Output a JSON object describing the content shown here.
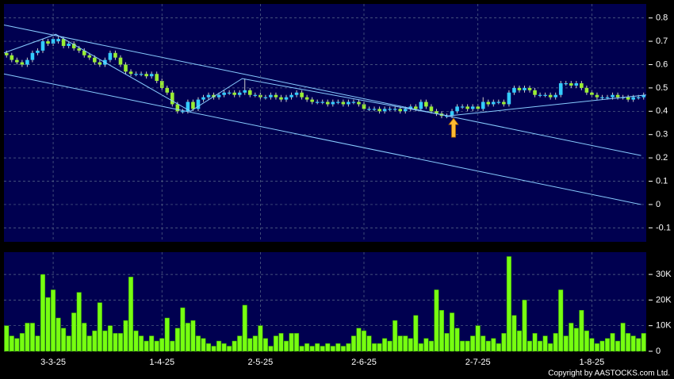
{
  "chart_data": [
    {
      "type": "candlestick",
      "ylim": [
        -0.16,
        0.86
      ],
      "yticks": [
        -0.1,
        0,
        0.1,
        0.2,
        0.3,
        0.4,
        0.5,
        0.6,
        0.7,
        0.8
      ],
      "grid": true,
      "up_color": "#33ccff",
      "down_color": "#99ee33",
      "candles": [
        [
          0.65,
          0.66,
          0.63,
          0.64
        ],
        [
          0.64,
          0.65,
          0.61,
          0.62
        ],
        [
          0.62,
          0.63,
          0.6,
          0.61
        ],
        [
          0.61,
          0.62,
          0.59,
          0.6
        ],
        [
          0.6,
          0.63,
          0.59,
          0.62
        ],
        [
          0.62,
          0.66,
          0.61,
          0.65
        ],
        [
          0.65,
          0.67,
          0.64,
          0.66
        ],
        [
          0.66,
          0.71,
          0.65,
          0.7
        ],
        [
          0.7,
          0.71,
          0.68,
          0.69
        ],
        [
          0.69,
          0.72,
          0.68,
          0.71
        ],
        [
          0.7,
          0.72,
          0.69,
          0.71
        ],
        [
          0.71,
          0.72,
          0.67,
          0.68
        ],
        [
          0.68,
          0.7,
          0.67,
          0.69
        ],
        [
          0.69,
          0.7,
          0.66,
          0.67
        ],
        [
          0.67,
          0.68,
          0.65,
          0.66
        ],
        [
          0.66,
          0.67,
          0.63,
          0.64
        ],
        [
          0.64,
          0.65,
          0.62,
          0.63
        ],
        [
          0.63,
          0.64,
          0.6,
          0.61
        ],
        [
          0.61,
          0.62,
          0.59,
          0.6
        ],
        [
          0.6,
          0.63,
          0.59,
          0.62
        ],
        [
          0.62,
          0.66,
          0.61,
          0.65
        ],
        [
          0.65,
          0.66,
          0.62,
          0.63
        ],
        [
          0.63,
          0.64,
          0.59,
          0.6
        ],
        [
          0.6,
          0.61,
          0.56,
          0.57
        ],
        [
          0.57,
          0.58,
          0.55,
          0.56
        ],
        [
          0.56,
          0.57,
          0.55,
          0.56
        ],
        [
          0.56,
          0.57,
          0.55,
          0.56
        ],
        [
          0.56,
          0.57,
          0.54,
          0.55
        ],
        [
          0.55,
          0.57,
          0.54,
          0.56
        ],
        [
          0.56,
          0.57,
          0.52,
          0.53
        ],
        [
          0.53,
          0.54,
          0.49,
          0.5
        ],
        [
          0.5,
          0.51,
          0.47,
          0.48
        ],
        [
          0.48,
          0.49,
          0.42,
          0.43
        ],
        [
          0.43,
          0.44,
          0.39,
          0.4
        ],
        [
          0.4,
          0.41,
          0.39,
          0.4
        ],
        [
          0.4,
          0.45,
          0.39,
          0.44
        ],
        [
          0.44,
          0.45,
          0.4,
          0.41
        ],
        [
          0.41,
          0.46,
          0.4,
          0.45
        ],
        [
          0.45,
          0.47,
          0.44,
          0.46
        ],
        [
          0.46,
          0.48,
          0.45,
          0.47
        ],
        [
          0.47,
          0.48,
          0.45,
          0.46
        ],
        [
          0.46,
          0.48,
          0.45,
          0.47
        ],
        [
          0.47,
          0.49,
          0.46,
          0.48
        ],
        [
          0.48,
          0.49,
          0.47,
          0.48
        ],
        [
          0.48,
          0.49,
          0.46,
          0.47
        ],
        [
          0.47,
          0.49,
          0.46,
          0.48
        ],
        [
          0.48,
          0.54,
          0.47,
          0.49
        ],
        [
          0.49,
          0.5,
          0.46,
          0.47
        ],
        [
          0.47,
          0.48,
          0.46,
          0.47
        ],
        [
          0.47,
          0.48,
          0.45,
          0.46
        ],
        [
          0.46,
          0.47,
          0.45,
          0.46
        ],
        [
          0.46,
          0.48,
          0.45,
          0.47
        ],
        [
          0.47,
          0.48,
          0.45,
          0.46
        ],
        [
          0.46,
          0.47,
          0.44,
          0.45
        ],
        [
          0.45,
          0.47,
          0.44,
          0.46
        ],
        [
          0.46,
          0.48,
          0.45,
          0.47
        ],
        [
          0.47,
          0.49,
          0.46,
          0.48
        ],
        [
          0.48,
          0.49,
          0.45,
          0.46
        ],
        [
          0.46,
          0.47,
          0.44,
          0.45
        ],
        [
          0.45,
          0.46,
          0.43,
          0.44
        ],
        [
          0.44,
          0.45,
          0.43,
          0.44
        ],
        [
          0.44,
          0.45,
          0.43,
          0.44
        ],
        [
          0.44,
          0.45,
          0.42,
          0.43
        ],
        [
          0.43,
          0.45,
          0.42,
          0.44
        ],
        [
          0.44,
          0.45,
          0.43,
          0.44
        ],
        [
          0.44,
          0.45,
          0.42,
          0.43
        ],
        [
          0.43,
          0.45,
          0.42,
          0.44
        ],
        [
          0.44,
          0.45,
          0.43,
          0.44
        ],
        [
          0.44,
          0.45,
          0.42,
          0.43
        ],
        [
          0.43,
          0.44,
          0.4,
          0.41
        ],
        [
          0.41,
          0.42,
          0.4,
          0.41
        ],
        [
          0.41,
          0.42,
          0.4,
          0.41
        ],
        [
          0.41,
          0.42,
          0.39,
          0.4
        ],
        [
          0.4,
          0.42,
          0.39,
          0.41
        ],
        [
          0.41,
          0.42,
          0.4,
          0.41
        ],
        [
          0.41,
          0.42,
          0.4,
          0.41
        ],
        [
          0.41,
          0.42,
          0.39,
          0.4
        ],
        [
          0.4,
          0.42,
          0.39,
          0.41
        ],
        [
          0.41,
          0.43,
          0.4,
          0.42
        ],
        [
          0.42,
          0.43,
          0.4,
          0.41
        ],
        [
          0.41,
          0.45,
          0.4,
          0.44
        ],
        [
          0.44,
          0.45,
          0.41,
          0.42
        ],
        [
          0.42,
          0.43,
          0.39,
          0.4
        ],
        [
          0.4,
          0.41,
          0.38,
          0.39
        ],
        [
          0.39,
          0.4,
          0.37,
          0.38
        ],
        [
          0.38,
          0.39,
          0.37,
          0.38
        ],
        [
          0.38,
          0.41,
          0.37,
          0.4
        ],
        [
          0.4,
          0.43,
          0.39,
          0.42
        ],
        [
          0.42,
          0.43,
          0.41,
          0.42
        ],
        [
          0.42,
          0.43,
          0.4,
          0.41
        ],
        [
          0.41,
          0.43,
          0.4,
          0.42
        ],
        [
          0.42,
          0.43,
          0.4,
          0.41
        ],
        [
          0.41,
          0.46,
          0.4,
          0.44
        ],
        [
          0.44,
          0.45,
          0.42,
          0.43
        ],
        [
          0.43,
          0.45,
          0.42,
          0.44
        ],
        [
          0.44,
          0.45,
          0.43,
          0.44
        ],
        [
          0.44,
          0.45,
          0.42,
          0.43
        ],
        [
          0.43,
          0.49,
          0.42,
          0.48
        ],
        [
          0.48,
          0.51,
          0.47,
          0.5
        ],
        [
          0.5,
          0.51,
          0.48,
          0.49
        ],
        [
          0.49,
          0.51,
          0.48,
          0.5
        ],
        [
          0.5,
          0.51,
          0.48,
          0.49
        ],
        [
          0.49,
          0.5,
          0.46,
          0.47
        ],
        [
          0.47,
          0.48,
          0.46,
          0.47
        ],
        [
          0.47,
          0.48,
          0.46,
          0.47
        ],
        [
          0.47,
          0.48,
          0.45,
          0.46
        ],
        [
          0.46,
          0.48,
          0.45,
          0.47
        ],
        [
          0.47,
          0.53,
          0.46,
          0.52
        ],
        [
          0.52,
          0.53,
          0.51,
          0.52
        ],
        [
          0.52,
          0.53,
          0.5,
          0.51
        ],
        [
          0.51,
          0.53,
          0.5,
          0.52
        ],
        [
          0.52,
          0.53,
          0.49,
          0.5
        ],
        [
          0.5,
          0.51,
          0.47,
          0.48
        ],
        [
          0.48,
          0.49,
          0.46,
          0.47
        ],
        [
          0.47,
          0.48,
          0.45,
          0.46
        ],
        [
          0.46,
          0.47,
          0.45,
          0.46
        ],
        [
          0.46,
          0.47,
          0.45,
          0.46
        ],
        [
          0.46,
          0.48,
          0.45,
          0.47
        ],
        [
          0.47,
          0.48,
          0.45,
          0.46
        ],
        [
          0.46,
          0.47,
          0.45,
          0.46
        ],
        [
          0.46,
          0.47,
          0.44,
          0.45
        ],
        [
          0.45,
          0.47,
          0.44,
          0.46
        ],
        [
          0.46,
          0.47,
          0.45,
          0.46
        ],
        [
          0.46,
          0.48,
          0.45,
          0.47
        ]
      ],
      "trendline_color": "#88ccff",
      "trendlines": [
        {
          "x": [
            -0.5,
            122.5
          ],
          "values": [
            0.77,
            0.21
          ]
        },
        {
          "x": [
            -0.5,
            122.5
          ],
          "values": [
            0.56,
            0.0
          ]
        },
        {
          "x": [
            -0.5,
            9.5,
            35.5,
            45.5,
            85.3,
            123.5
          ],
          "values": [
            0.65,
            0.73,
            0.4,
            0.54,
            0.38,
            0.47
          ]
        }
      ],
      "arrow": {
        "x": 86.3,
        "value": 0.37,
        "color": "#ffbb33"
      }
    },
    {
      "type": "bar",
      "color": "#77ff11",
      "ylim": [
        0,
        38700
      ],
      "yticks": [
        0,
        {
          "value": 10000,
          "label": "10K"
        },
        {
          "value": 20000,
          "label": "20K"
        },
        {
          "value": 30000,
          "label": "30K"
        }
      ],
      "grid": true,
      "categories": [
        null,
        null,
        null,
        null,
        null,
        null,
        null,
        null,
        null,
        "3-3-25",
        null,
        null,
        null,
        null,
        null,
        null,
        null,
        null,
        null,
        null,
        null,
        null,
        null,
        null,
        null,
        null,
        null,
        null,
        null,
        null,
        "1-4-25",
        null,
        null,
        null,
        null,
        null,
        null,
        null,
        null,
        null,
        null,
        null,
        null,
        null,
        null,
        null,
        null,
        null,
        null,
        "2-5-25",
        null,
        null,
        null,
        null,
        null,
        null,
        null,
        null,
        null,
        null,
        null,
        null,
        null,
        null,
        null,
        null,
        null,
        null,
        null,
        "2-6-25",
        null,
        null,
        null,
        null,
        null,
        null,
        null,
        null,
        null,
        null,
        null,
        null,
        null,
        null,
        null,
        null,
        null,
        null,
        null,
        null,
        null,
        "2-7-25",
        null,
        null,
        null,
        null,
        null,
        null,
        null,
        null,
        null,
        null,
        null,
        null,
        null,
        null,
        null,
        null,
        null,
        null,
        null,
        null,
        null,
        "1-8-25",
        null,
        null,
        null,
        null,
        null,
        null,
        null,
        null,
        null,
        null
      ],
      "values": [
        10000,
        6000,
        5000,
        7000,
        11000,
        11000,
        6000,
        30000,
        21000,
        24000,
        13000,
        9000,
        6000,
        15000,
        23000,
        11000,
        6000,
        8000,
        19000,
        8000,
        10000,
        7000,
        7000,
        12000,
        29000,
        8000,
        6000,
        4000,
        6000,
        4000,
        5000,
        13000,
        4000,
        9000,
        17000,
        11000,
        12000,
        6000,
        5000,
        3000,
        2000,
        4000,
        3000,
        2000,
        4000,
        6000,
        18000,
        5000,
        6000,
        10000,
        5000,
        2000,
        6000,
        7000,
        4000,
        7000,
        7000,
        2000,
        3000,
        2000,
        3000,
        2000,
        3000,
        2000,
        3000,
        2000,
        3000,
        6000,
        9000,
        8000,
        6000,
        3000,
        3000,
        5000,
        4000,
        12000,
        6000,
        6000,
        5000,
        14000,
        3000,
        5000,
        4000,
        24000,
        16000,
        7000,
        15000,
        9000,
        4000,
        4000,
        6000,
        10000,
        6000,
        4000,
        5000,
        3000,
        7000,
        37000,
        14000,
        8000,
        20000,
        4000,
        7000,
        4000,
        6000,
        3000,
        7000,
        24000,
        6000,
        11000,
        9000,
        16000,
        8000,
        5000,
        3000,
        4000,
        5000,
        7000,
        4000,
        11000,
        7000,
        6000,
        5000,
        7000
      ]
    }
  ],
  "copyright": "Copyright by AASTOCKS.com Ltd."
}
